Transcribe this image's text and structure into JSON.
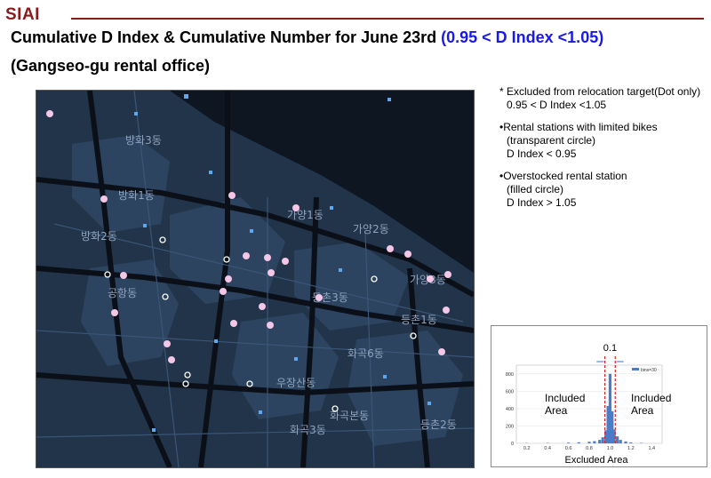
{
  "header": {
    "logo": "SIAI",
    "title_main": "Cumulative D Index & Cumulative Number for June 23rd ",
    "title_highlight": "(0.95 < D Index <1.05)",
    "subtitle": "(Gangseo-gu rental office)"
  },
  "legend_notes": {
    "excluded_title": "* Excluded from relocation target(Dot only)",
    "excluded_range": "0.95 < D Index <1.05",
    "limited_title": "•Rental stations with limited bikes",
    "limited_desc": "(transparent circle)",
    "limited_range": "D Index < 0.95",
    "overstock_title": "•Overstocked rental station",
    "overstock_desc": "(filled circle)",
    "overstock_range": "D Index > 1.05"
  },
  "map": {
    "district_labels": [
      "방화3동",
      "방화1동",
      "방화2동",
      "공항동",
      "가양1동",
      "가양2동",
      "가양3동",
      "등촌3동",
      "등촌1동",
      "화곡6동",
      "우장산동",
      "화곡본동",
      "화곡3동",
      "등촌2동"
    ],
    "colors": {
      "background": "#22344a",
      "blocks": "#2c4460",
      "river": "#0e1622",
      "roads": "#0b0f18",
      "filled": "#f5c7e6"
    }
  },
  "chart_data": {
    "type": "bar",
    "title": "",
    "annotation": "0.1",
    "legend": "bins=30",
    "xlabel": "Excluded Area",
    "xticks": [
      "0.2",
      "0.4",
      "0.6",
      "0.8",
      "1.0",
      "1.2",
      "1.4"
    ],
    "yticks": [
      "0",
      "200",
      "400",
      "600",
      "800"
    ],
    "ylim": [
      0,
      900
    ],
    "xlim": [
      0.1,
      1.5
    ],
    "bin_centers": [
      0.2,
      0.4,
      0.6,
      0.7,
      0.8,
      0.85,
      0.9,
      0.93,
      0.96,
      0.98,
      1.0,
      1.02,
      1.04,
      1.07,
      1.1,
      1.15,
      1.2,
      1.3
    ],
    "values": [
      3,
      4,
      8,
      12,
      18,
      25,
      40,
      70,
      150,
      430,
      800,
      370,
      160,
      80,
      40,
      22,
      10,
      5
    ],
    "left_annotation": "Included\nArea",
    "right_annotation": "Included\nArea",
    "bar_color": "#4a7cc9",
    "threshold_color": "#e02020"
  }
}
